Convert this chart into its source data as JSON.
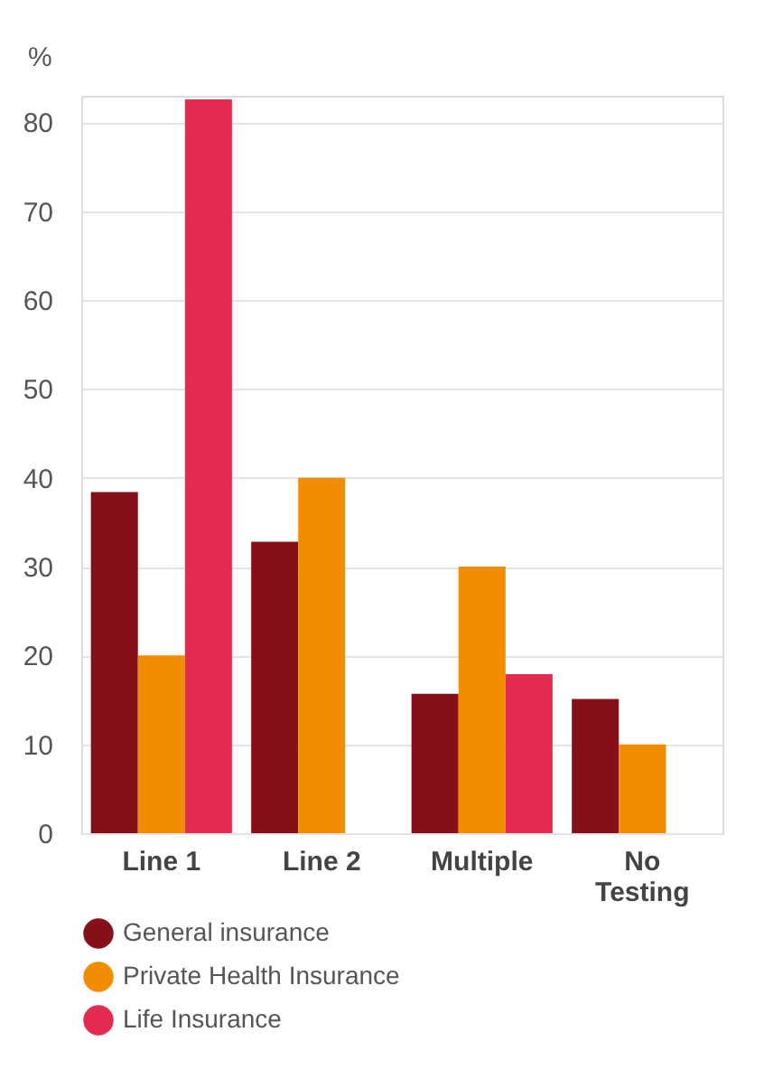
{
  "chart_data": {
    "type": "bar",
    "ylabel": "%",
    "categories": [
      "Line 1",
      "Line 2",
      "Multiple",
      "No Testing"
    ],
    "series": [
      {
        "name": "General insurance",
        "color": "#85101a",
        "values": [
          38.4,
          32.8,
          15.7,
          15.1
        ]
      },
      {
        "name": "Private Health Insurance",
        "color": "#f28c00",
        "values": [
          20,
          40,
          30,
          10
        ]
      },
      {
        "name": "Life Insurance",
        "color": "#e32a50",
        "values": [
          82.6,
          null,
          17.9,
          null
        ]
      }
    ],
    "ylim": [
      0,
      83
    ],
    "yticks": [
      0,
      10,
      20,
      30,
      40,
      50,
      60,
      70,
      80
    ],
    "grid": "y",
    "legend": "bottom left"
  }
}
